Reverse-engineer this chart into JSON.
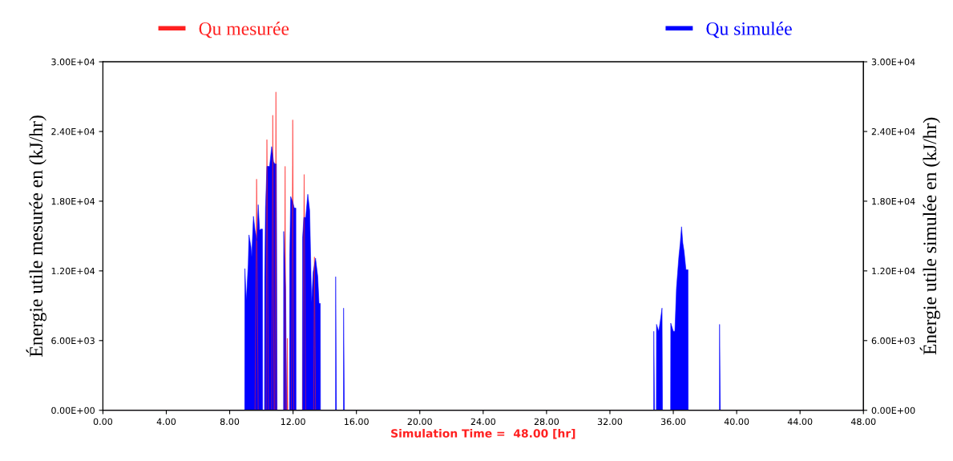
{
  "chart_data": {
    "type": "area",
    "xlabel": "Simulation Time =  48.00 [hr]",
    "ylabel": "Énergie utile mesurée en (kJ/hr)",
    "y2label": "Énergie utile simulée en (kJ/hr)",
    "xlim": [
      0,
      48
    ],
    "xticks": [
      {
        "value": 0,
        "label": "0.00"
      },
      {
        "value": 4,
        "label": "4.00"
      },
      {
        "value": 8,
        "label": "8.00"
      },
      {
        "value": 12,
        "label": "12.00"
      },
      {
        "value": 16,
        "label": "16.00"
      },
      {
        "value": 20,
        "label": "20.00"
      },
      {
        "value": 24,
        "label": "24.00"
      },
      {
        "value": 28,
        "label": "28.00"
      },
      {
        "value": 32,
        "label": "32.00"
      },
      {
        "value": 36,
        "label": "36.00"
      },
      {
        "value": 40,
        "label": "40.00"
      },
      {
        "value": 44,
        "label": "44.00"
      },
      {
        "value": 48,
        "label": "48.00"
      }
    ],
    "ylim": [
      0,
      30000
    ],
    "yticks": [
      {
        "value": 0,
        "label": "0.00E+00"
      },
      {
        "value": 6000,
        "label": "6.00E+03"
      },
      {
        "value": 12000,
        "label": "1.20E+04"
      },
      {
        "value": 18000,
        "label": "1.80E+04"
      },
      {
        "value": 24000,
        "label": "2.40E+04"
      },
      {
        "value": 30000,
        "label": "3.00E+04"
      }
    ],
    "y2lim": [
      0,
      30000
    ],
    "y2ticks": [
      {
        "value": 0,
        "label": "0.00E+00"
      },
      {
        "value": 6000,
        "label": "6.00E+03"
      },
      {
        "value": 12000,
        "label": "1.20E+04"
      },
      {
        "value": 18000,
        "label": "1.80E+04"
      },
      {
        "value": 24000,
        "label": "2.40E+04"
      },
      {
        "value": 30000,
        "label": "3.00E+04"
      }
    ],
    "grid": false,
    "legend": "top",
    "marker": "none",
    "series": [
      {
        "name": "Qu mesurée",
        "color": "#ff2020",
        "x": [
          0,
          9.6,
          9.7,
          9.8,
          10.3,
          10.35,
          10.45,
          10.65,
          10.72,
          10.8,
          10.85,
          10.92,
          10.97,
          11.45,
          11.5,
          11.55,
          11.62,
          11.64,
          11.67,
          11.9,
          11.98,
          12.05,
          12.6,
          12.7,
          12.8,
          13.3,
          13.35,
          13.42,
          48
        ],
        "values": [
          0,
          0,
          19900,
          0,
          0,
          23300,
          0,
          0,
          25400,
          0,
          0,
          27400,
          0,
          0,
          21000,
          0,
          0,
          6200,
          0,
          0,
          25000,
          0,
          0,
          20300,
          0,
          0,
          13200,
          0,
          0
        ]
      },
      {
        "name": "Qu simulée",
        "color": "#0000ff",
        "x": [
          0,
          8.95,
          8.96,
          9.05,
          9.17,
          9.22,
          9.34,
          9.39,
          9.5,
          9.6,
          9.72,
          9.8,
          9.89,
          9.97,
          10.07,
          10.08,
          10.2,
          10.21,
          10.26,
          10.35,
          10.52,
          10.65,
          10.77,
          10.85,
          10.95,
          10.99,
          11.4,
          11.41,
          11.53,
          11.6,
          11.78,
          11.79,
          11.85,
          11.99,
          12.08,
          12.18,
          12.19,
          12.59,
          12.6,
          12.68,
          12.8,
          12.93,
          13.05,
          13.17,
          13.27,
          13.42,
          13.56,
          13.64,
          13.72,
          13.73,
          14.68,
          14.69,
          14.74,
          15.18,
          15.19,
          15.24,
          34.76,
          34.77,
          34.82,
          34.93,
          34.94,
          35.08,
          35.16,
          35.29,
          35.32,
          35.83,
          35.84,
          36.0,
          36.1,
          36.2,
          36.35,
          36.44,
          36.52,
          36.6,
          36.68,
          36.8,
          36.93,
          36.94,
          38.91,
          38.92,
          38.97,
          48
        ],
        "values": [
          0,
          0,
          12200,
          9450,
          12550,
          15100,
          14100,
          13200,
          16700,
          15500,
          14600,
          17700,
          15500,
          15600,
          15600,
          0,
          0,
          11350,
          17400,
          21000,
          21000,
          22700,
          21400,
          21200,
          21200,
          0,
          0,
          15400,
          10500,
          0,
          0,
          13200,
          18400,
          17900,
          17400,
          17400,
          0,
          0,
          14800,
          16600,
          16600,
          18600,
          17200,
          9300,
          11900,
          13100,
          11500,
          9200,
          9200,
          0,
          0,
          11500,
          0,
          0,
          8800,
          0,
          0,
          6800,
          0,
          0,
          7400,
          6800,
          7500,
          8800,
          0,
          0,
          7500,
          6800,
          6800,
          10500,
          13200,
          14400,
          15800,
          14400,
          13700,
          12100,
          12100,
          0,
          0,
          7400,
          0,
          0
        ]
      }
    ]
  }
}
